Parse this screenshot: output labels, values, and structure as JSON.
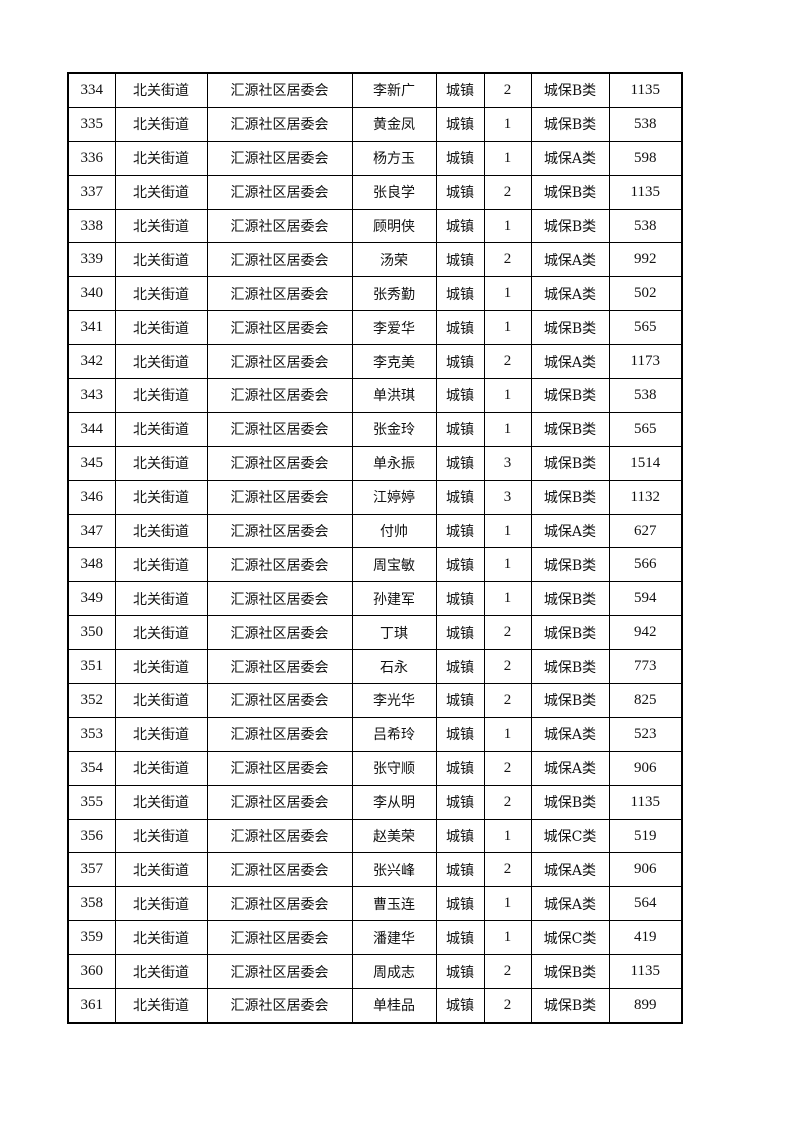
{
  "table": {
    "rows": [
      [
        "334",
        "北关街道",
        "汇源社区居委会",
        "李新广",
        "城镇",
        "2",
        "城保B类",
        "1135"
      ],
      [
        "335",
        "北关街道",
        "汇源社区居委会",
        "黄金凤",
        "城镇",
        "1",
        "城保B类",
        "538"
      ],
      [
        "336",
        "北关街道",
        "汇源社区居委会",
        "杨方玉",
        "城镇",
        "1",
        "城保A类",
        "598"
      ],
      [
        "337",
        "北关街道",
        "汇源社区居委会",
        "张良学",
        "城镇",
        "2",
        "城保B类",
        "1135"
      ],
      [
        "338",
        "北关街道",
        "汇源社区居委会",
        "顾明侠",
        "城镇",
        "1",
        "城保B类",
        "538"
      ],
      [
        "339",
        "北关街道",
        "汇源社区居委会",
        "汤荣",
        "城镇",
        "2",
        "城保A类",
        "992"
      ],
      [
        "340",
        "北关街道",
        "汇源社区居委会",
        "张秀勤",
        "城镇",
        "1",
        "城保A类",
        "502"
      ],
      [
        "341",
        "北关街道",
        "汇源社区居委会",
        "李爱华",
        "城镇",
        "1",
        "城保B类",
        "565"
      ],
      [
        "342",
        "北关街道",
        "汇源社区居委会",
        "李克美",
        "城镇",
        "2",
        "城保A类",
        "1173"
      ],
      [
        "343",
        "北关街道",
        "汇源社区居委会",
        "单洪琪",
        "城镇",
        "1",
        "城保B类",
        "538"
      ],
      [
        "344",
        "北关街道",
        "汇源社区居委会",
        "张金玲",
        "城镇",
        "1",
        "城保B类",
        "565"
      ],
      [
        "345",
        "北关街道",
        "汇源社区居委会",
        "单永振",
        "城镇",
        "3",
        "城保B类",
        "1514"
      ],
      [
        "346",
        "北关街道",
        "汇源社区居委会",
        "江婷婷",
        "城镇",
        "3",
        "城保B类",
        "1132"
      ],
      [
        "347",
        "北关街道",
        "汇源社区居委会",
        "付帅",
        "城镇",
        "1",
        "城保A类",
        "627"
      ],
      [
        "348",
        "北关街道",
        "汇源社区居委会",
        "周宝敏",
        "城镇",
        "1",
        "城保B类",
        "566"
      ],
      [
        "349",
        "北关街道",
        "汇源社区居委会",
        "孙建军",
        "城镇",
        "1",
        "城保B类",
        "594"
      ],
      [
        "350",
        "北关街道",
        "汇源社区居委会",
        "丁琪",
        "城镇",
        "2",
        "城保B类",
        "942"
      ],
      [
        "351",
        "北关街道",
        "汇源社区居委会",
        "石永",
        "城镇",
        "2",
        "城保B类",
        "773"
      ],
      [
        "352",
        "北关街道",
        "汇源社区居委会",
        "李光华",
        "城镇",
        "2",
        "城保B类",
        "825"
      ],
      [
        "353",
        "北关街道",
        "汇源社区居委会",
        "吕希玲",
        "城镇",
        "1",
        "城保A类",
        "523"
      ],
      [
        "354",
        "北关街道",
        "汇源社区居委会",
        "张守顺",
        "城镇",
        "2",
        "城保A类",
        "906"
      ],
      [
        "355",
        "北关街道",
        "汇源社区居委会",
        "李从明",
        "城镇",
        "2",
        "城保B类",
        "1135"
      ],
      [
        "356",
        "北关街道",
        "汇源社区居委会",
        "赵美荣",
        "城镇",
        "1",
        "城保C类",
        "519"
      ],
      [
        "357",
        "北关街道",
        "汇源社区居委会",
        "张兴峰",
        "城镇",
        "2",
        "城保A类",
        "906"
      ],
      [
        "358",
        "北关街道",
        "汇源社区居委会",
        "曹玉连",
        "城镇",
        "1",
        "城保A类",
        "564"
      ],
      [
        "359",
        "北关街道",
        "汇源社区居委会",
        "潘建华",
        "城镇",
        "1",
        "城保C类",
        "419"
      ],
      [
        "360",
        "北关街道",
        "汇源社区居委会",
        "周成志",
        "城镇",
        "2",
        "城保B类",
        "1135"
      ],
      [
        "361",
        "北关街道",
        "汇源社区居委会",
        "单桂品",
        "城镇",
        "2",
        "城保B类",
        "899"
      ]
    ]
  }
}
